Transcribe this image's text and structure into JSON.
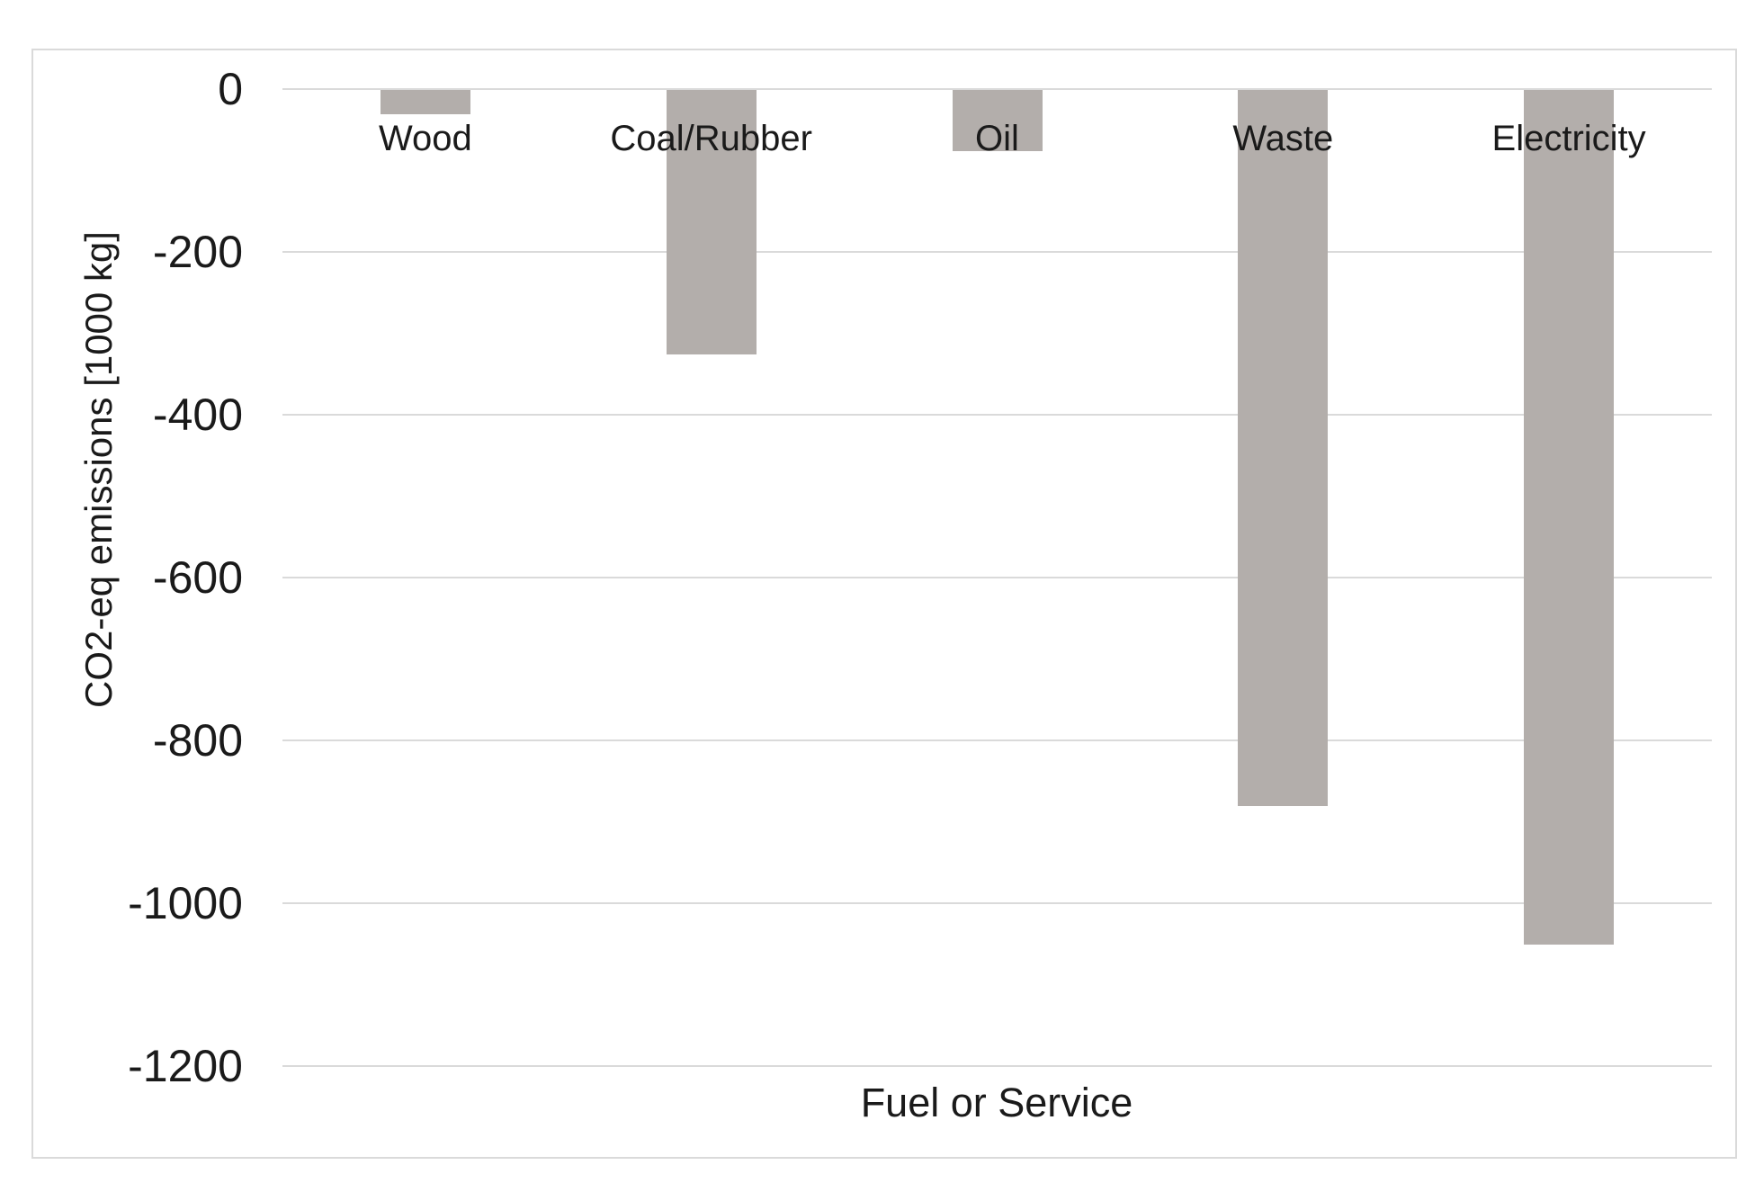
{
  "chart_data": {
    "type": "bar",
    "title": "",
    "categories": [
      "Wood",
      "Coal/Rubber",
      "Oil",
      "Waste",
      "Electricity"
    ],
    "values": [
      -30,
      -325,
      -75,
      -880,
      -1050
    ],
    "xlabel": "Fuel or Service",
    "ylabel": "CO2-eq emissions [1000 kg]",
    "yticks": [
      0,
      -200,
      -400,
      -600,
      -800,
      -1000,
      -1200
    ],
    "ytick_labels": [
      "0",
      "-200",
      "-400",
      "-600",
      "-800",
      "-1000",
      "-1200"
    ],
    "ylim": [
      -1200,
      0
    ],
    "grid": true,
    "legend": false,
    "bar_color": "#b3aeab",
    "gridline_color": "#dadada",
    "frame_color": "#dadada",
    "text_color": "#1a1a1a",
    "background_color": "#ffffff"
  }
}
